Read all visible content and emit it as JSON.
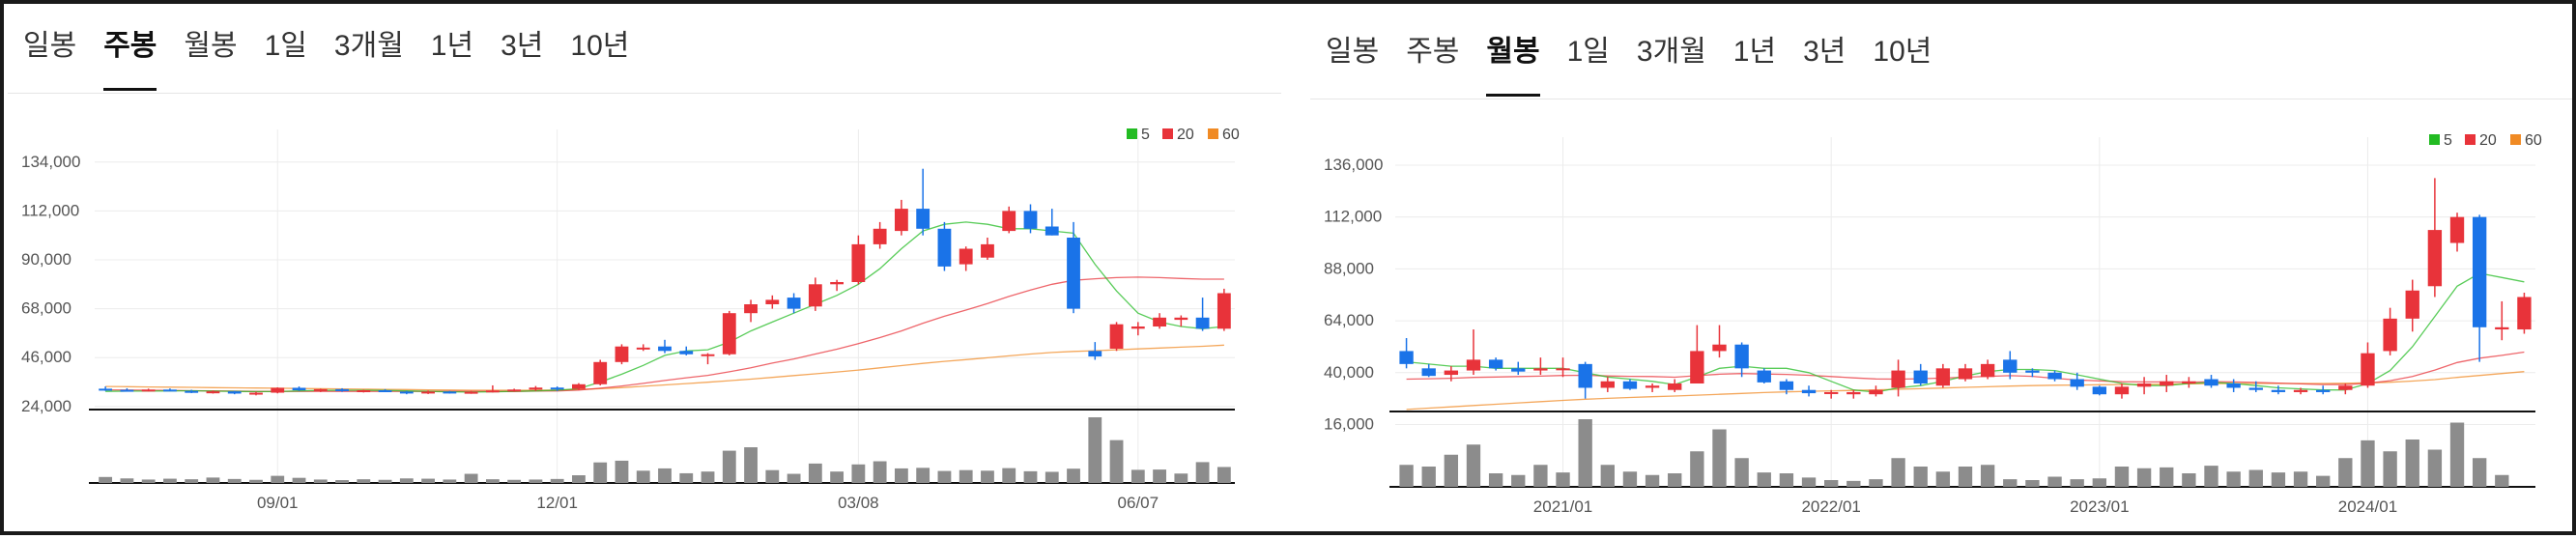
{
  "panels": [
    {
      "id": "left",
      "tabs": [
        "일봉",
        "주봉",
        "월봉",
        "1일",
        "3개월",
        "1년",
        "3년",
        "10년"
      ],
      "active_tab": "주봉",
      "legend": [
        {
          "label": "5",
          "color": "#22bb22"
        },
        {
          "label": "20",
          "color": "#e8333a"
        },
        {
          "label": "60",
          "color": "#f08a24"
        }
      ]
    },
    {
      "id": "right",
      "tabs": [
        "일봉",
        "주봉",
        "월봉",
        "1일",
        "3개월",
        "1년",
        "3년",
        "10년"
      ],
      "active_tab": "월봉",
      "legend": [
        {
          "label": "5",
          "color": "#22bb22"
        },
        {
          "label": "20",
          "color": "#e8333a"
        },
        {
          "label": "60",
          "color": "#f08a24"
        }
      ]
    }
  ],
  "colors": {
    "up": "#e8333a",
    "down": "#1a73e8",
    "volume": "#8c8c8c",
    "ma5": "#22bb22",
    "ma20": "#e8333a",
    "ma60": "#f08a24"
  },
  "chart_data": [
    {
      "type": "candlestick",
      "interval": "weekly",
      "ylim": [
        20000,
        140000
      ],
      "y_ticks": [
        "134,000",
        "112,000",
        "90,000",
        "68,000",
        "46,000",
        "24,000"
      ],
      "y_tick_values": [
        134000,
        112000,
        90000,
        68000,
        46000,
        24000
      ],
      "x_tick_labels": [
        {
          "label": "09/01",
          "index": 8
        },
        {
          "label": "12/01",
          "index": 21
        },
        {
          "label": "03/08",
          "index": 35
        },
        {
          "label": "06/07",
          "index": 48
        }
      ],
      "grid": true,
      "legend_position": "top-right",
      "ohlc": [
        [
          32000,
          33000,
          31000,
          31500
        ],
        [
          31500,
          32200,
          30800,
          31200
        ],
        [
          31200,
          32000,
          30700,
          31600
        ],
        [
          31600,
          32100,
          30900,
          31000
        ],
        [
          31000,
          31500,
          30000,
          30300
        ],
        [
          30300,
          31200,
          29800,
          30800
        ],
        [
          30800,
          31000,
          29500,
          29800
        ],
        [
          29800,
          30600,
          29000,
          30200
        ],
        [
          30200,
          32600,
          29900,
          32400
        ],
        [
          32400,
          33000,
          31000,
          31300
        ],
        [
          31300,
          32000,
          30500,
          31800
        ],
        [
          31800,
          32200,
          30600,
          30900
        ],
        [
          30900,
          31500,
          30300,
          31300
        ],
        [
          31300,
          31800,
          30500,
          30700
        ],
        [
          30700,
          31000,
          29500,
          29900
        ],
        [
          29900,
          31200,
          29600,
          30700
        ],
        [
          30700,
          31000,
          29800,
          30100
        ],
        [
          30100,
          31000,
          29700,
          30600
        ],
        [
          30600,
          33500,
          30300,
          31200
        ],
        [
          31200,
          32000,
          30600,
          31600
        ],
        [
          31600,
          33200,
          31000,
          32500
        ],
        [
          32500,
          33000,
          31000,
          31900
        ],
        [
          31900,
          34500,
          31500,
          34000
        ],
        [
          34000,
          45000,
          33500,
          44000
        ],
        [
          44000,
          52000,
          43000,
          51000
        ],
        [
          50500,
          52000,
          49000,
          50500
        ],
        [
          51000,
          54000,
          48000,
          49000
        ],
        [
          49000,
          51000,
          47000,
          47500
        ],
        [
          47000,
          48000,
          43000,
          47500
        ],
        [
          47500,
          67000,
          47000,
          66000
        ],
        [
          66000,
          72000,
          62000,
          70000
        ],
        [
          70000,
          74000,
          68000,
          72000
        ],
        [
          73000,
          75000,
          66000,
          68000
        ],
        [
          69000,
          82000,
          67000,
          79000
        ],
        [
          79000,
          81000,
          76000,
          80000
        ],
        [
          80000,
          101000,
          79000,
          97000
        ],
        [
          97000,
          107000,
          95000,
          104000
        ],
        [
          103000,
          117000,
          101000,
          113000
        ],
        [
          113000,
          131000,
          101000,
          104000
        ],
        [
          104000,
          107000,
          85000,
          87000
        ],
        [
          88000,
          96000,
          85000,
          95000
        ],
        [
          91000,
          100000,
          90000,
          97000
        ],
        [
          103000,
          114000,
          102000,
          112000
        ],
        [
          112000,
          115000,
          102000,
          104000
        ],
        [
          105000,
          113000,
          101000,
          101000
        ],
        [
          100000,
          107000,
          66000,
          68000
        ],
        [
          49000,
          53000,
          45000,
          46500
        ],
        [
          50000,
          62000,
          49000,
          61000
        ],
        [
          59000,
          62000,
          56000,
          60000
        ],
        [
          60000,
          66000,
          59000,
          64000
        ],
        [
          63000,
          65000,
          60000,
          64000
        ],
        [
          64000,
          73000,
          58000,
          59000
        ],
        [
          59000,
          77000,
          58000,
          75000
        ]
      ],
      "volume": [
        2.1,
        1.6,
        1.2,
        1.5,
        1.3,
        1.9,
        1.4,
        1.1,
        2.5,
        1.8,
        1.2,
        1.0,
        1.3,
        1.1,
        1.6,
        1.5,
        1.2,
        3.2,
        1.3,
        1.1,
        1.2,
        1.4,
        2.7,
        7.2,
        7.8,
        4.3,
        5.1,
        3.4,
        4.0,
        11.3,
        12.5,
        4.5,
        3.2,
        6.8,
        4.0,
        6.5,
        7.6,
        5.1,
        5.3,
        4.2,
        4.5,
        4.3,
        5.2,
        4.1,
        3.9,
        5.0,
        23.0,
        15.0,
        4.6,
        4.7,
        3.3,
        7.3,
        5.6
      ],
      "ma5": [
        30800,
        30900,
        30900,
        31000,
        31100,
        30900,
        30800,
        30700,
        30700,
        31000,
        31200,
        31300,
        31300,
        31200,
        31000,
        30800,
        30600,
        30500,
        30600,
        30800,
        31000,
        31300,
        32000,
        35000,
        38500,
        42500,
        47000,
        49000,
        49500,
        53000,
        58000,
        62000,
        66000,
        70000,
        74000,
        79000,
        86000,
        95000,
        103000,
        106000,
        107000,
        106000,
        104000,
        104000,
        103000,
        102000,
        88000,
        76000,
        66000,
        62000,
        60000,
        59000,
        60000
      ],
      "ma20": [
        31500,
        31400,
        31300,
        31200,
        31100,
        31000,
        30900,
        30800,
        30800,
        30800,
        30800,
        30800,
        30800,
        30800,
        30800,
        30800,
        30800,
        30800,
        30800,
        30800,
        30900,
        31000,
        31400,
        32200,
        33200,
        34400,
        35700,
        36900,
        38000,
        39600,
        41400,
        43500,
        45400,
        47600,
        49800,
        52300,
        55000,
        58000,
        61500,
        64600,
        67400,
        70300,
        73500,
        76400,
        79000,
        80800,
        81500,
        82000,
        82200,
        82000,
        81600,
        81300,
        81300
      ],
      "ma60": [
        33000,
        32900,
        32800,
        32700,
        32600,
        32500,
        32400,
        32300,
        32200,
        32100,
        32000,
        31900,
        31800,
        31700,
        31600,
        31500,
        31400,
        31300,
        31300,
        31300,
        31300,
        31400,
        31600,
        32000,
        32500,
        33100,
        33700,
        34300,
        34900,
        35600,
        36300,
        37100,
        37900,
        38700,
        39500,
        40400,
        41400,
        42400,
        43400,
        44300,
        45100,
        45900,
        46800,
        47600,
        48300,
        48800,
        49100,
        49500,
        49900,
        50300,
        50700,
        51100,
        51600
      ]
    },
    {
      "type": "candlestick",
      "interval": "monthly",
      "ylim": [
        14000,
        140000
      ],
      "y_ticks": [
        "136,000",
        "112,000",
        "88,000",
        "64,000",
        "40,000",
        "16,000"
      ],
      "y_tick_values": [
        136000,
        112000,
        88000,
        64000,
        40000,
        16000
      ],
      "x_tick_labels": [
        {
          "label": "2021/01",
          "index": 7
        },
        {
          "label": "2022/01",
          "index": 19
        },
        {
          "label": "2023/01",
          "index": 31
        },
        {
          "label": "2024/01",
          "index": 43
        }
      ],
      "grid": true,
      "legend_position": "top-right",
      "ohlc": [
        [
          50000,
          56000,
          42000,
          44000
        ],
        [
          42000,
          44000,
          38000,
          38500
        ],
        [
          39000,
          43000,
          36000,
          41000
        ],
        [
          41000,
          60000,
          39000,
          46000
        ],
        [
          46000,
          47000,
          41000,
          42000
        ],
        [
          42000,
          45000,
          39000,
          40500
        ],
        [
          41000,
          47000,
          39000,
          42000
        ],
        [
          42000,
          47000,
          38000,
          42000
        ],
        [
          44000,
          45000,
          28000,
          33000
        ],
        [
          33000,
          38000,
          31000,
          36000
        ],
        [
          36000,
          37000,
          32000,
          32500
        ],
        [
          33000,
          35000,
          31000,
          34000
        ],
        [
          32000,
          37000,
          31000,
          35000
        ],
        [
          35000,
          62000,
          35000,
          50000
        ],
        [
          50000,
          62000,
          47000,
          53000
        ],
        [
          53000,
          54000,
          38000,
          42000
        ],
        [
          41000,
          42000,
          35000,
          35500
        ],
        [
          36000,
          37000,
          30000,
          32000
        ],
        [
          32000,
          34000,
          29000,
          30500
        ],
        [
          30500,
          32000,
          28000,
          31000
        ],
        [
          30000,
          32000,
          28000,
          31000
        ],
        [
          30000,
          34000,
          29000,
          32000
        ],
        [
          33000,
          46000,
          29000,
          41000
        ],
        [
          41000,
          44000,
          34000,
          35000
        ],
        [
          34000,
          44000,
          33000,
          42000
        ],
        [
          37000,
          44000,
          36000,
          42000
        ],
        [
          38000,
          46000,
          37000,
          44000
        ],
        [
          46000,
          50000,
          37000,
          40000
        ],
        [
          41000,
          42000,
          38000,
          40000
        ],
        [
          40000,
          41000,
          36000,
          37000
        ],
        [
          37000,
          40000,
          32000,
          33500
        ],
        [
          33500,
          34000,
          29500,
          30000
        ],
        [
          30000,
          35000,
          28000,
          33500
        ],
        [
          33500,
          38000,
          30000,
          35000
        ],
        [
          34000,
          39000,
          31000,
          36000
        ],
        [
          35000,
          38000,
          33000,
          36000
        ],
        [
          37000,
          39000,
          33000,
          34000
        ],
        [
          35000,
          37000,
          31000,
          33000
        ],
        [
          33000,
          36000,
          31000,
          32000
        ],
        [
          32000,
          34000,
          30000,
          31000
        ],
        [
          31000,
          33000,
          30000,
          32000
        ],
        [
          32000,
          34000,
          30000,
          31000
        ],
        [
          32000,
          35000,
          30000,
          34000
        ],
        [
          34000,
          54000,
          33000,
          49000
        ],
        [
          50000,
          70000,
          48000,
          65000
        ],
        [
          65000,
          83000,
          59000,
          78000
        ],
        [
          80000,
          130000,
          75000,
          106000
        ],
        [
          100000,
          114000,
          96000,
          112000
        ],
        [
          112000,
          113000,
          45000,
          61000
        ],
        [
          60000,
          73000,
          55000,
          61000
        ],
        [
          60000,
          77000,
          58000,
          75000
        ]
      ],
      "volume": [
        2.6,
        2.4,
        3.8,
        5.0,
        1.6,
        1.4,
        2.6,
        1.7,
        8.0,
        2.6,
        1.8,
        1.4,
        1.6,
        4.2,
        6.8,
        3.4,
        1.7,
        1.6,
        1.1,
        0.8,
        0.7,
        0.9,
        3.4,
        2.4,
        1.8,
        2.4,
        2.6,
        0.9,
        0.8,
        1.2,
        0.9,
        1.0,
        2.4,
        2.2,
        2.3,
        1.6,
        2.5,
        1.8,
        2.0,
        1.7,
        1.8,
        1.3,
        3.4,
        5.5,
        4.2,
        5.6,
        4.4,
        7.6,
        3.4,
        1.4
      ],
      "ma5": [
        45000,
        44000,
        43000,
        43000,
        42000,
        42000,
        42000,
        42000,
        40000,
        38000,
        37000,
        36000,
        34500,
        38000,
        42000,
        43000,
        42000,
        42000,
        40000,
        36000,
        32000,
        31000,
        33000,
        34000,
        36000,
        38500,
        40500,
        41500,
        41500,
        41000,
        39000,
        37000,
        35000,
        34000,
        34000,
        35000,
        35500,
        35000,
        34000,
        33000,
        32500,
        32000,
        32000,
        35000,
        41000,
        52000,
        66000,
        80000,
        86000,
        84000,
        82000
      ],
      "ma20": [
        37000,
        37200,
        37400,
        37800,
        38000,
        38200,
        38400,
        38700,
        38800,
        38500,
        38300,
        38200,
        37900,
        38600,
        39300,
        39600,
        39400,
        39200,
        38800,
        38200,
        37600,
        37100,
        37000,
        37200,
        37500,
        37900,
        38300,
        38600,
        38300,
        37400,
        36600,
        36200,
        35800,
        35700,
        35700,
        35600,
        35800,
        35700,
        35500,
        35200,
        34800,
        34500,
        34500,
        35100,
        36300,
        38200,
        41200,
        44700,
        46700,
        48000,
        49500
      ],
      "ma60": [
        23000,
        23600,
        24200,
        24800,
        25400,
        26000,
        26600,
        27200,
        27700,
        28100,
        28500,
        28900,
        29200,
        29600,
        30000,
        30400,
        30800,
        31100,
        31400,
        31600,
        31800,
        32000,
        32300,
        32600,
        32900,
        33200,
        33500,
        33800,
        34000,
        34200,
        34300,
        34400,
        34500,
        34600,
        34700,
        34800,
        34900,
        35000,
        35000,
        35000,
        35000,
        35000,
        35100,
        35300,
        35600,
        36100,
        36800,
        37800,
        38700,
        39600,
        40500
      ]
    }
  ]
}
